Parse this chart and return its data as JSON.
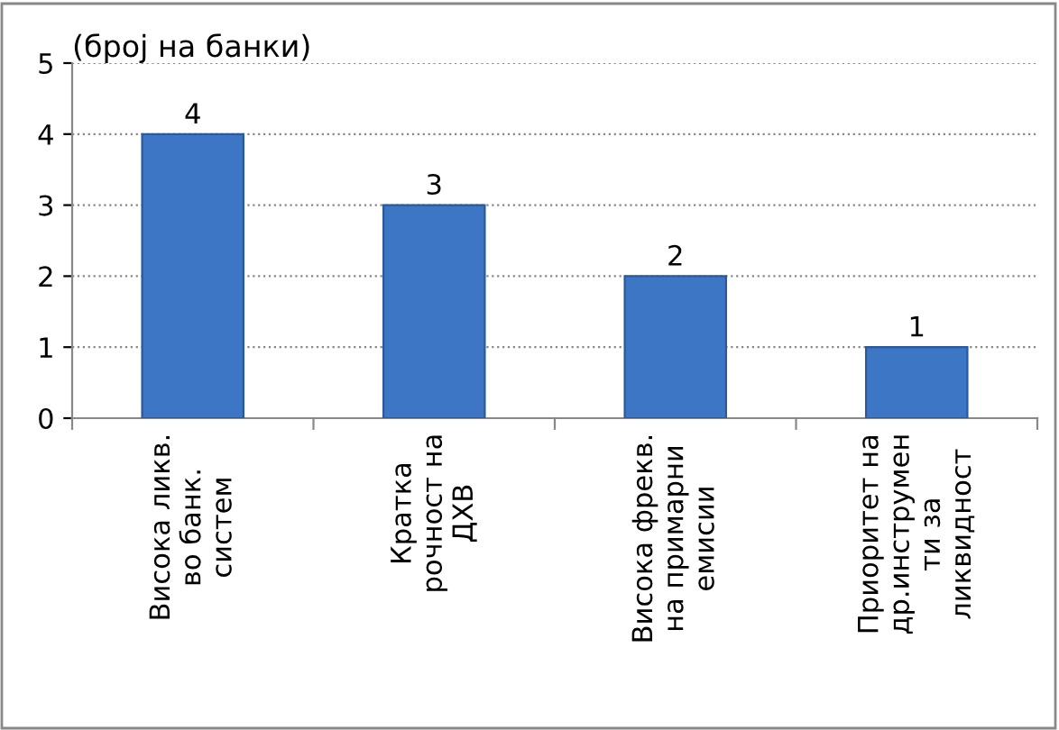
{
  "chart_data": {
    "type": "bar",
    "ylabel": "(број на банки)",
    "categories": [
      "Висока ликв.\nво банк.\nсистем",
      "Кратка\nрочност на\nДХВ",
      "Висока фрекв.\nна примарни\nемисии",
      "Приоритет на\nдр.инструмен\nти за\nликвидност"
    ],
    "values": [
      4,
      3,
      2,
      1
    ],
    "color": "#3d76c4",
    "ylim": [
      0,
      5
    ],
    "yticks": [
      0,
      1,
      2,
      3,
      4,
      5
    ],
    "grid": "y",
    "data_labels": true
  }
}
